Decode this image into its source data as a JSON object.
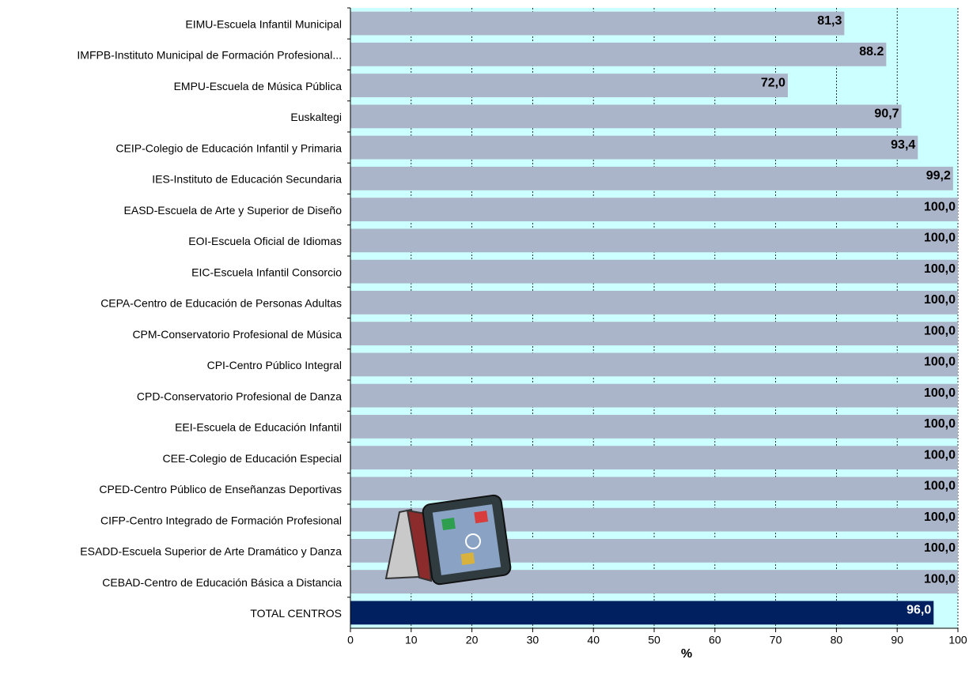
{
  "chart_data": {
    "type": "hbar",
    "categories": [
      "EIMU-Escuela Infantil Municipal",
      "IMFPB-Instituto Municipal de Formación Profesional...",
      "EMPU-Escuela de Música Pública",
      "Euskaltegi",
      "CEIP-Colegio de Educación Infantil y Primaria",
      "IES-Instituto de Educación Secundaria",
      "EASD-Escuela de Arte y Superior de Diseño",
      "EOI-Escuela Oficial de Idiomas",
      "EIC-Escuela Infantil Consorcio",
      "CEPA-Centro de Educación de Personas Adultas",
      "CPM-Conservatorio Profesional de Música",
      "CPI-Centro Público Integral",
      "CPD-Conservatorio Profesional de Danza",
      "EEI-Escuela de Educación Infantil",
      "CEE-Colegio de Educación Especial",
      "CPED-Centro Público de Enseñanzas Deportivas",
      "CIFP-Centro Integrado de Formación Profesional",
      "ESADD-Escuela Superior de Arte Dramático y Danza",
      "CEBAD-Centro de Educación Básica a Distancia",
      "TOTAL CENTROS"
    ],
    "values": [
      81.3,
      88.2,
      72.0,
      90.7,
      93.4,
      99.2,
      100,
      100,
      100,
      100,
      100,
      100,
      100,
      100,
      100,
      100,
      100,
      100,
      100,
      96.0
    ],
    "value_labels": [
      "81,3",
      "88.2",
      "72,0",
      "90,7",
      "93,4",
      "99,2",
      "100,0",
      "100,0",
      "100,0",
      "100,0",
      "100,0",
      "100,0",
      "100,0",
      "100,0",
      "100,0",
      "100,0",
      "100,0",
      "100,0",
      "100,0",
      "96,0"
    ],
    "colors": [
      "#abb5c9",
      "#abb5c9",
      "#abb5c9",
      "#abb5c9",
      "#abb5c9",
      "#abb5c9",
      "#abb5c9",
      "#abb5c9",
      "#abb5c9",
      "#abb5c9",
      "#abb5c9",
      "#abb5c9",
      "#abb5c9",
      "#abb5c9",
      "#abb5c9",
      "#abb5c9",
      "#abb5c9",
      "#abb5c9",
      "#abb5c9",
      "#002060"
    ],
    "xlabel": "%",
    "xlim": [
      0,
      100
    ],
    "xticks": [
      0,
      10,
      20,
      30,
      40,
      50,
      60,
      70,
      80,
      90,
      100
    ],
    "grid": true
  }
}
